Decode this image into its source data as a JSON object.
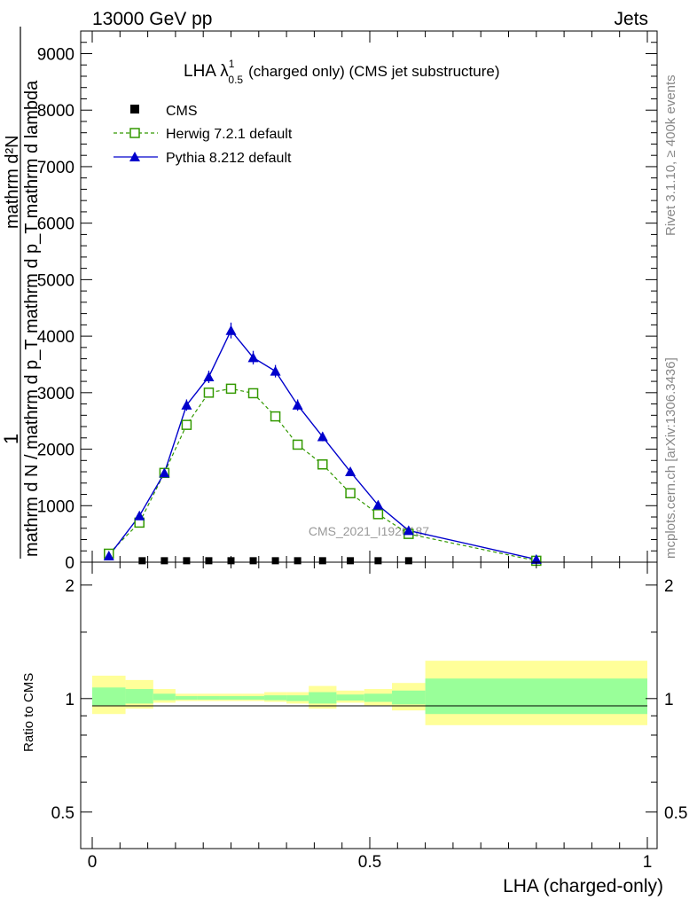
{
  "header": {
    "left": "13000 GeV pp",
    "right": "Jets"
  },
  "side": {
    "rivet": "Rivet 3.1.10, ≥ 400k events",
    "mcplots": "mcplots.cern.ch [arXiv:1306.3436]"
  },
  "colors": {
    "herwig": "#339900",
    "pythia": "#0000cc",
    "cms": "#000000",
    "band_outer": "#ffff99",
    "band_inner": "#99ff99"
  },
  "chart_data": [
    {
      "type": "line",
      "title_main": "LHA λ",
      "title_sup": "1",
      "title_sub": "0.5",
      "title_rest": "(charged only) (CMS jet substructure)",
      "ylabel_num": "1",
      "ylabel_frac_top": "mathrm d²N",
      "ylabel_frac_bot": "mathrm d p_T mathrm d lambda",
      "ylabel_den": "mathrm d N / mathrm d p_T",
      "xlim": [
        0,
        1
      ],
      "ylim": [
        0,
        9400
      ],
      "yticks": [
        0,
        1000,
        2000,
        3000,
        4000,
        5000,
        6000,
        7000,
        8000,
        9000
      ],
      "ytick_labels": [
        "0",
        "1000",
        "2000",
        "3000",
        "4000",
        "5000",
        "6000",
        "7000",
        "8000",
        "9000"
      ],
      "watermark": "CMS_2021_I1920187",
      "legend": [
        "CMS",
        "Herwig 7.2.1 default",
        "Pythia 8.212 default"
      ],
      "series": [
        {
          "name": "CMS",
          "x": [
            0.09,
            0.13,
            0.17,
            0.21,
            0.25,
            0.29,
            0.33,
            0.37,
            0.415,
            0.465,
            0.515,
            0.57
          ],
          "y": [
            10,
            10,
            10,
            10,
            10,
            10,
            10,
            10,
            10,
            10,
            10,
            10
          ]
        },
        {
          "name": "Herwig 7.2.1 default",
          "x": [
            0.03,
            0.085,
            0.13,
            0.17,
            0.21,
            0.25,
            0.29,
            0.33,
            0.37,
            0.415,
            0.465,
            0.515,
            0.57,
            0.8
          ],
          "y": [
            150,
            700,
            1580,
            2430,
            3000,
            3070,
            2990,
            2580,
            2080,
            1730,
            1220,
            850,
            500,
            25
          ]
        },
        {
          "name": "Pythia 8.212 default",
          "x": [
            0.03,
            0.085,
            0.13,
            0.17,
            0.21,
            0.25,
            0.29,
            0.33,
            0.37,
            0.415,
            0.465,
            0.515,
            0.57,
            0.8
          ],
          "y": [
            110,
            820,
            1580,
            2780,
            3280,
            4100,
            3620,
            3380,
            2780,
            2220,
            1600,
            1010,
            560,
            50
          ],
          "yerr": [
            30,
            40,
            60,
            100,
            110,
            140,
            120,
            110,
            100,
            80,
            70,
            50,
            30,
            10
          ]
        }
      ]
    },
    {
      "type": "area",
      "ylabel": "Ratio to CMS",
      "xlabel": "LHA (charged-only)",
      "xlim": [
        0,
        1
      ],
      "ylim": [
        0.4,
        2.3
      ],
      "yscale": "log",
      "xticks": [
        0,
        0.5,
        1
      ],
      "xtick_labels": [
        "0",
        "0.5",
        "1"
      ],
      "yticks": [
        0.5,
        1,
        2
      ],
      "ytick_labels": [
        "0.5",
        "1",
        "2"
      ],
      "bins": [
        0,
        0.06,
        0.11,
        0.15,
        0.19,
        0.23,
        0.27,
        0.31,
        0.35,
        0.39,
        0.44,
        0.49,
        0.54,
        0.6,
        1.0
      ],
      "band_outer_lo": [
        0.91,
        0.94,
        0.975,
        0.985,
        0.985,
        0.985,
        0.985,
        0.98,
        0.97,
        0.94,
        0.975,
        0.96,
        0.93,
        0.85
      ],
      "band_outer_hi": [
        1.15,
        1.12,
        1.06,
        1.03,
        1.03,
        1.03,
        1.03,
        1.04,
        1.04,
        1.08,
        1.05,
        1.06,
        1.1,
        1.26
      ],
      "band_inner_lo": [
        0.96,
        0.97,
        0.99,
        0.993,
        0.993,
        0.993,
        0.993,
        0.99,
        0.985,
        0.97,
        0.988,
        0.98,
        0.965,
        0.91
      ],
      "band_inner_hi": [
        1.07,
        1.06,
        1.03,
        1.015,
        1.015,
        1.015,
        1.015,
        1.02,
        1.02,
        1.04,
        1.025,
        1.03,
        1.05,
        1.13
      ]
    }
  ]
}
